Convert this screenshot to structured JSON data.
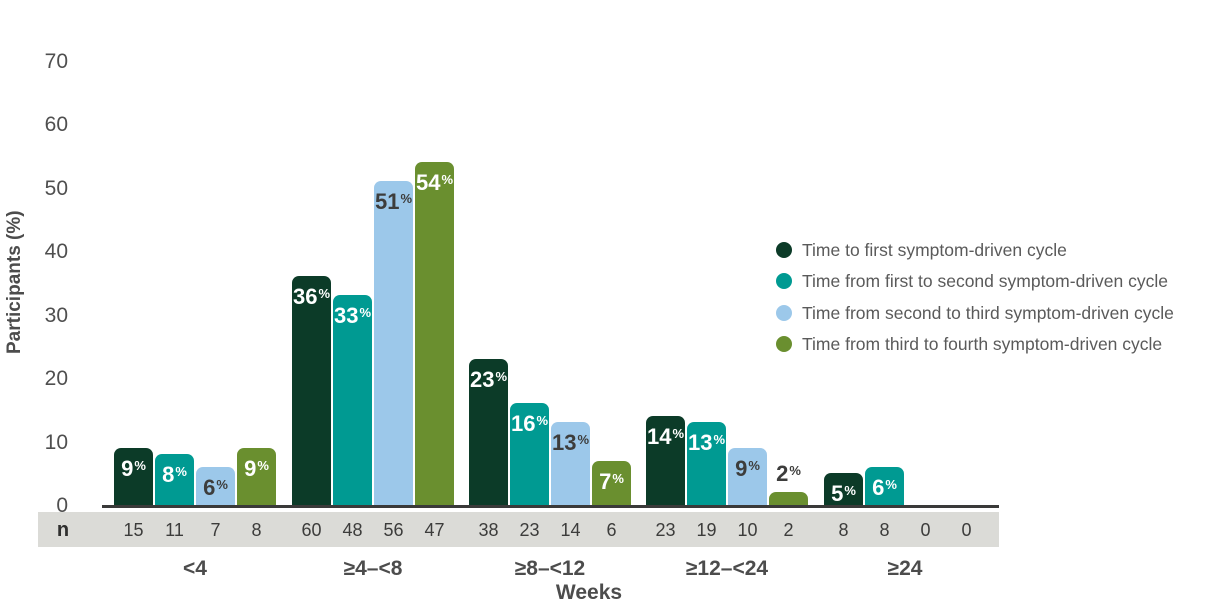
{
  "figure": {
    "ylabel": "Participants (%)",
    "xlabel": "Weeks",
    "n_row_label": "n"
  },
  "chart_data": {
    "type": "bar",
    "title": "",
    "xlabel": "Weeks",
    "ylabel": "Participants (%)",
    "ylim": [
      0,
      70
    ],
    "yticks": [
      0,
      10,
      20,
      30,
      40,
      50,
      60,
      70
    ],
    "grid": false,
    "legend_position": "right",
    "value_suffix": "%",
    "categories": [
      "<4",
      "≥4–<8",
      "≥8–<12",
      "≥12–<24",
      "≥24"
    ],
    "series": [
      {
        "name": "Time to first symptom-driven cycle",
        "color": "#0c3b28",
        "label_color": "#ffffff",
        "values": [
          9,
          36,
          23,
          14,
          5
        ],
        "n": [
          15,
          60,
          38,
          23,
          8
        ]
      },
      {
        "name": "Time from first to second symptom-driven cycle",
        "color": "#009a92",
        "label_color": "#ffffff",
        "values": [
          8,
          33,
          16,
          13,
          6
        ],
        "n": [
          11,
          48,
          23,
          19,
          8
        ]
      },
      {
        "name": "Time from second to third symptom-driven cycle",
        "color": "#9cc8ea",
        "label_color": "#3d3d3c",
        "values": [
          6,
          51,
          13,
          9,
          0
        ],
        "n": [
          7,
          56,
          14,
          10,
          0
        ]
      },
      {
        "name": "Time from third to fourth symptom-driven cycle",
        "color": "#6a8f2f",
        "label_color": "#ffffff",
        "values": [
          9,
          54,
          7,
          2,
          0
        ],
        "n": [
          8,
          47,
          6,
          2,
          0
        ]
      }
    ],
    "colors": {
      "axis_line": "#3a3a39",
      "tick_text": "#4f4f4f",
      "n_strip_bg": "#dbdbd7",
      "dark_label_text": "#3d3d3c"
    }
  }
}
